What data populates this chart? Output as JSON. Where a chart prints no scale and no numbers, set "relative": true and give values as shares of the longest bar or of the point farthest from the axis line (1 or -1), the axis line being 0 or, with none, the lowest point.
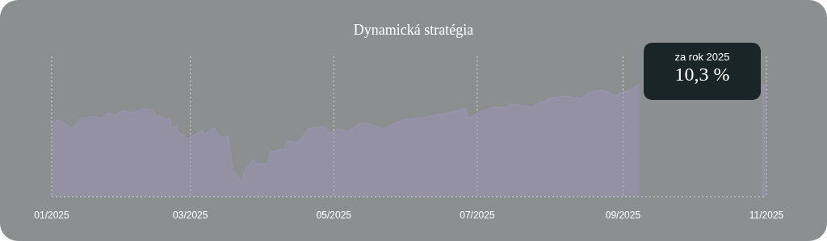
{
  "chart_data": {
    "type": "area",
    "title": "Dynamická stratégia",
    "relative": true,
    "grid": "x",
    "x": [
      "2025-01-01",
      "2025-01-04",
      "2025-01-10",
      "2025-01-13",
      "2025-01-19",
      "2025-01-22",
      "2025-01-25",
      "2025-01-28",
      "2025-01-31",
      "2025-02-04",
      "2025-02-10",
      "2025-02-13",
      "2025-02-15",
      "2025-02-16",
      "2025-02-18",
      "2025-02-20",
      "2025-02-21",
      "2025-02-23",
      "2025-02-24",
      "2025-02-28",
      "2025-03-03",
      "2025-03-06",
      "2025-03-07",
      "2025-03-11",
      "2025-03-14",
      "2025-03-17",
      "2025-03-19",
      "2025-03-21",
      "2025-03-23",
      "2025-03-24",
      "2025-03-28",
      "2025-03-29",
      "2025-04-03",
      "2025-04-04",
      "2025-04-10",
      "2025-04-11",
      "2025-04-16",
      "2025-04-20",
      "2025-04-27",
      "2025-04-29",
      "2025-05-03",
      "2025-05-07",
      "2025-05-12",
      "2025-05-15",
      "2025-05-22",
      "2025-05-29",
      "2025-06-02",
      "2025-06-08",
      "2025-06-19",
      "2025-06-26",
      "2025-06-27",
      "2025-07-02",
      "2025-07-08",
      "2025-07-14",
      "2025-07-15",
      "2025-07-24",
      "2025-08-01",
      "2025-08-07",
      "2025-08-14",
      "2025-08-18",
      "2025-08-24",
      "2025-08-29",
      "2025-08-31",
      "2025-09-04",
      "2025-09-08",
      "2025-09-15",
      "2025-10-01",
      "2025-10-15",
      "2025-10-30",
      "2025-11-01"
    ],
    "series": [
      {
        "color": "#9a93b4",
        "values": [
          0.65,
          0.68,
          0.6,
          0.69,
          0.71,
          0.69,
          0.74,
          0.72,
          0.76,
          0.74,
          0.78,
          0.76,
          0.7,
          0.72,
          0.68,
          0.7,
          0.62,
          0.62,
          0.57,
          0.51,
          0.55,
          0.58,
          0.55,
          0.61,
          0.52,
          0.54,
          0.23,
          0.19,
          0.12,
          0.23,
          0.33,
          0.29,
          0.29,
          0.4,
          0.42,
          0.49,
          0.48,
          0.6,
          0.62,
          0.56,
          0.6,
          0.57,
          0.65,
          0.65,
          0.6,
          0.67,
          0.69,
          0.7,
          0.74,
          0.78,
          0.69,
          0.75,
          0.79,
          0.79,
          0.82,
          0.79,
          0.87,
          0.89,
          0.87,
          0.93,
          0.94,
          0.89,
          0.92,
          0.94,
          1,
          null,
          null,
          null,
          0.99,
          0.99
        ]
      }
    ],
    "xlim": [
      "2025-01-01",
      "2025-11-01"
    ],
    "xticks": [
      {
        "value": "2025-01-01",
        "label": "01/2025"
      },
      {
        "value": "2025-03-01",
        "label": "03/2025"
      },
      {
        "value": "2025-05-01",
        "label": "05/2025"
      },
      {
        "value": "2025-07-01",
        "label": "07/2025"
      },
      {
        "value": "2025-09-01",
        "label": "09/2025"
      },
      {
        "value": "2025-11-01",
        "label": "11/2025"
      }
    ],
    "annotations": [
      "za rok 2025",
      "10,3 %"
    ]
  }
}
